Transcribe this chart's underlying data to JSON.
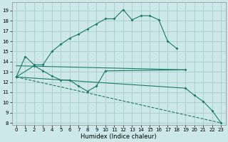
{
  "bg_color": "#cce8e8",
  "grid_color": "#aacccc",
  "line_color": "#1a7a6a",
  "xlabel": "Humidex (Indice chaleur)",
  "xlim": [
    -0.5,
    23.5
  ],
  "ylim": [
    7.8,
    19.8
  ],
  "yticks": [
    8,
    9,
    10,
    11,
    12,
    13,
    14,
    15,
    16,
    17,
    18,
    19
  ],
  "xticks": [
    0,
    1,
    2,
    3,
    4,
    5,
    6,
    7,
    8,
    9,
    10,
    11,
    12,
    13,
    14,
    15,
    16,
    17,
    18,
    19,
    20,
    21,
    22,
    23
  ],
  "curve1_x": [
    0,
    1,
    2,
    3,
    4,
    5,
    6,
    7,
    8,
    9,
    10,
    11,
    12,
    13,
    14,
    15,
    16,
    17,
    18
  ],
  "curve1_y": [
    12.5,
    14.5,
    13.7,
    13.7,
    15.0,
    15.7,
    16.3,
    16.7,
    17.2,
    17.7,
    18.2,
    18.2,
    19.1,
    18.1,
    18.5,
    18.5,
    18.1,
    16.0,
    15.3
  ],
  "curve2_x": [
    0,
    2,
    3,
    4,
    5,
    6,
    7,
    8,
    9,
    10,
    19
  ],
  "curve2_y": [
    12.5,
    13.6,
    13.1,
    12.6,
    12.2,
    12.2,
    11.6,
    11.1,
    11.6,
    13.1,
    13.2
  ],
  "curve3_x": [
    0,
    19
  ],
  "curve3_y": [
    13.6,
    13.2
  ],
  "curve4_x": [
    0,
    23
  ],
  "curve4_y": [
    12.5,
    8.0
  ],
  "curve5_x": [
    0,
    19,
    20,
    21,
    22,
    23
  ],
  "curve5_y": [
    12.5,
    11.4,
    10.7,
    10.1,
    9.2,
    8.0
  ]
}
